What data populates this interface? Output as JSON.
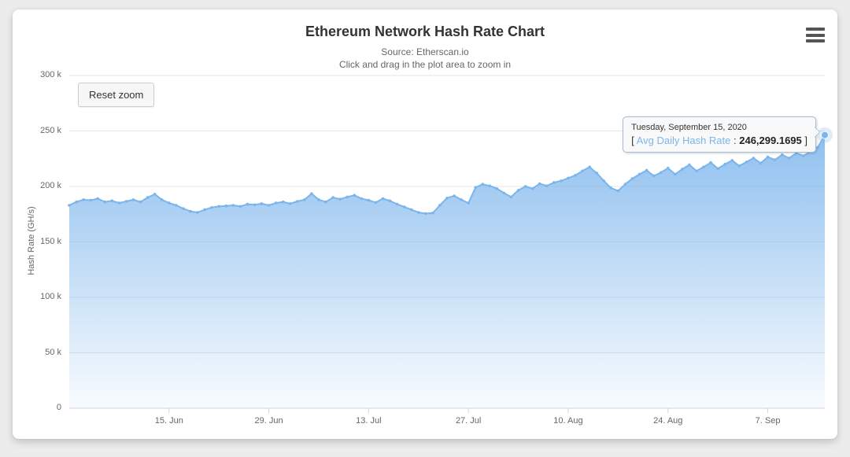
{
  "page": {
    "background_color": "#ececec",
    "card_color": "#ffffff"
  },
  "chart": {
    "title": "Ethereum Network Hash Rate Chart",
    "subtitle_line1": "Source: Etherscan.io",
    "subtitle_line2": "Click and drag in the plot area to zoom in",
    "reset_zoom_label": "Reset zoom",
    "colors": {
      "series_line": "#7cb5ec",
      "area_fill_top": "rgba(124,181,236,0.85)",
      "area_fill_bottom": "rgba(124,181,236,0.05)",
      "gridline": "#e6e6e6",
      "axis_line": "#ccd6eb",
      "label_text": "#666666",
      "title_text": "#333333"
    }
  },
  "tooltip": {
    "date": "Tuesday, September 15, 2020",
    "prefix": "[ ",
    "series_label": "Avg Daily Hash Rate",
    "separator": " : ",
    "value": "246,299.1695",
    "suffix": " ]"
  },
  "chart_data": {
    "type": "area",
    "title": "Ethereum Network Hash Rate Chart",
    "subtitle": "Source: Etherscan.io — Click and drag in the plot area to zoom in",
    "xlabel": "",
    "ylabel": "Hash Rate (GH/s)",
    "ylim": [
      0,
      300000
    ],
    "grid": true,
    "legend": "none",
    "x_start_date": "2020-06-01",
    "x_end_date": "2020-09-15",
    "x_unit": "day",
    "yticks": [
      {
        "label": "0",
        "value": 0
      },
      {
        "label": "50 k",
        "value": 50000
      },
      {
        "label": "100 k",
        "value": 100000
      },
      {
        "label": "150 k",
        "value": 150000
      },
      {
        "label": "200 k",
        "value": 200000
      },
      {
        "label": "250 k",
        "value": 250000
      },
      {
        "label": "300 k",
        "value": 300000
      }
    ],
    "xticks": [
      {
        "label": "15. Jun",
        "day": 14
      },
      {
        "label": "29. Jun",
        "day": 28
      },
      {
        "label": "13. Jul",
        "day": 42
      },
      {
        "label": "27. Jul",
        "day": 56
      },
      {
        "label": "10. Aug",
        "day": 70
      },
      {
        "label": "24. Aug",
        "day": 84
      },
      {
        "label": "7. Sep",
        "day": 98
      }
    ],
    "series": [
      {
        "name": "Avg Daily Hash Rate",
        "values": [
          183000,
          186000,
          188000,
          187500,
          189000,
          186000,
          187000,
          185000,
          186500,
          188000,
          186000,
          190000,
          193000,
          188000,
          185000,
          183000,
          180000,
          177500,
          176500,
          179000,
          181000,
          182000,
          182500,
          183000,
          182000,
          184000,
          183500,
          184500,
          183000,
          185000,
          186000,
          184500,
          186500,
          188000,
          193500,
          188000,
          186000,
          190000,
          188500,
          190500,
          192000,
          189000,
          187500,
          185500,
          189000,
          187000,
          184000,
          181500,
          179000,
          176500,
          175500,
          176000,
          183000,
          189500,
          191500,
          188000,
          185000,
          199000,
          202000,
          200500,
          198000,
          194000,
          190500,
          196500,
          200000,
          198000,
          202500,
          200500,
          203500,
          205000,
          207500,
          210000,
          214000,
          217500,
          212000,
          205000,
          198500,
          196000,
          202000,
          207000,
          211000,
          214500,
          209500,
          212500,
          216500,
          211000,
          215500,
          219500,
          214000,
          217500,
          221500,
          216000,
          220000,
          223500,
          218500,
          222000,
          225500,
          221000,
          226500,
          224000,
          228500,
          225500,
          230000,
          227500,
          231500,
          235000,
          246299.1695
        ]
      }
    ],
    "highlighted_point": {
      "date": "Tuesday, September 15, 2020",
      "value": 246299.1695
    }
  }
}
